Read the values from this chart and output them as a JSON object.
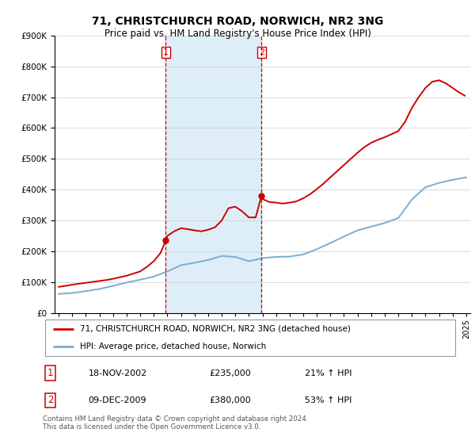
{
  "title": "71, CHRISTCHURCH ROAD, NORWICH, NR2 3NG",
  "subtitle": "Price paid vs. HM Land Registry's House Price Index (HPI)",
  "legend_line1": "71, CHRISTCHURCH ROAD, NORWICH, NR2 3NG (detached house)",
  "legend_line2": "HPI: Average price, detached house, Norwich",
  "transaction1_date": "18-NOV-2002",
  "transaction1_price": "£235,000",
  "transaction1_hpi": "21% ↑ HPI",
  "transaction2_date": "09-DEC-2009",
  "transaction2_price": "£380,000",
  "transaction2_hpi": "53% ↑ HPI",
  "footnote": "Contains HM Land Registry data © Crown copyright and database right 2024.\nThis data is licensed under the Open Government Licence v3.0.",
  "red_color": "#cc0000",
  "blue_color": "#7aadcf",
  "vline_color": "#cc0000",
  "shaded_color": "#ddeef8",
  "hpi_x": [
    1995,
    1996,
    1997,
    1998,
    1999,
    2000,
    2001,
    2002,
    2003,
    2004,
    2005,
    2006,
    2007,
    2008,
    2009,
    2010,
    2011,
    2012,
    2013,
    2014,
    2015,
    2016,
    2017,
    2018,
    2019,
    2020,
    2021,
    2022,
    2023,
    2024,
    2025
  ],
  "hpi_y": [
    62000,
    65000,
    71000,
    78000,
    88000,
    99000,
    108000,
    118000,
    135000,
    155000,
    163000,
    172000,
    185000,
    182000,
    168000,
    178000,
    182000,
    183000,
    190000,
    207000,
    227000,
    248000,
    268000,
    280000,
    292000,
    308000,
    368000,
    408000,
    422000,
    432000,
    440000
  ],
  "pp_x": [
    1995.0,
    1995.5,
    1996.0,
    1996.5,
    1997.0,
    1997.5,
    1998.0,
    1998.5,
    1999.0,
    1999.5,
    2000.0,
    2000.5,
    2001.0,
    2001.5,
    2002.0,
    2002.5,
    2002.88,
    2003.0,
    2003.5,
    2004.0,
    2004.5,
    2005.0,
    2005.5,
    2006.0,
    2006.5,
    2007.0,
    2007.5,
    2008.0,
    2008.5,
    2009.0,
    2009.5,
    2009.93,
    2010.0,
    2010.5,
    2011.0,
    2011.5,
    2012.0,
    2012.5,
    2013.0,
    2013.5,
    2014.0,
    2014.5,
    2015.0,
    2015.5,
    2016.0,
    2016.5,
    2017.0,
    2017.5,
    2018.0,
    2018.5,
    2019.0,
    2019.5,
    2020.0,
    2020.5,
    2021.0,
    2021.5,
    2022.0,
    2022.5,
    2023.0,
    2023.5,
    2024.0,
    2024.5,
    2024.9
  ],
  "pp_y": [
    85000,
    88000,
    92000,
    95000,
    98000,
    101000,
    104000,
    107000,
    111000,
    116000,
    121000,
    128000,
    135000,
    150000,
    168000,
    195000,
    235000,
    250000,
    265000,
    275000,
    272000,
    268000,
    265000,
    270000,
    278000,
    300000,
    340000,
    345000,
    330000,
    310000,
    310000,
    380000,
    370000,
    360000,
    358000,
    355000,
    358000,
    362000,
    372000,
    385000,
    402000,
    420000,
    440000,
    460000,
    480000,
    500000,
    520000,
    538000,
    552000,
    562000,
    570000,
    580000,
    590000,
    620000,
    665000,
    700000,
    730000,
    750000,
    755000,
    745000,
    730000,
    715000,
    705000
  ],
  "vline1_x": 2002.88,
  "vline2_x": 2009.93,
  "dot1_x": 2002.88,
  "dot1_y": 235000,
  "dot2_x": 2009.93,
  "dot2_y": 380000,
  "ylim": [
    0,
    900000
  ],
  "xlim_start": 1994.7,
  "xlim_end": 2025.3,
  "xticks": [
    1995,
    1996,
    1997,
    1998,
    1999,
    2000,
    2001,
    2002,
    2003,
    2004,
    2005,
    2006,
    2007,
    2008,
    2009,
    2010,
    2011,
    2012,
    2013,
    2014,
    2015,
    2016,
    2017,
    2018,
    2019,
    2020,
    2021,
    2022,
    2023,
    2024,
    2025
  ]
}
